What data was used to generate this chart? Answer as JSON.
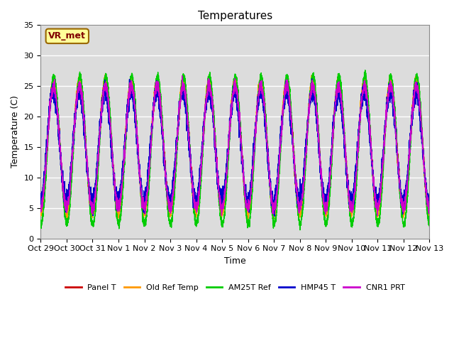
{
  "title": "Temperatures",
  "xlabel": "Time",
  "ylabel": "Temperature (C)",
  "ylim": [
    0,
    35
  ],
  "xlim_days": 15,
  "x_tick_labels": [
    "Oct 29",
    "Oct 30",
    "Oct 31",
    "Nov 1",
    "Nov 2",
    "Nov 3",
    "Nov 4",
    "Nov 5",
    "Nov 6",
    "Nov 7",
    "Nov 8",
    "Nov 9",
    "Nov 10",
    "Nov 11",
    "Nov 12",
    "Nov 13"
  ],
  "annotation_text": "VR_met",
  "annotation_bg": "#FFFF99",
  "annotation_border": "#996600",
  "annotation_text_color": "#800000",
  "series_colors": {
    "Panel T": "#CC0000",
    "Old Ref Temp": "#FF9900",
    "AM25T Ref": "#00CC00",
    "HMP45 T": "#0000CC",
    "CNR1 PRT": "#CC00CC"
  },
  "background_color": "#DCDCDC",
  "grid_color": "#FFFFFF",
  "fig_bg": "#FFFFFF",
  "n_cycles": 15,
  "start_day": 0,
  "points_per_day": 288
}
